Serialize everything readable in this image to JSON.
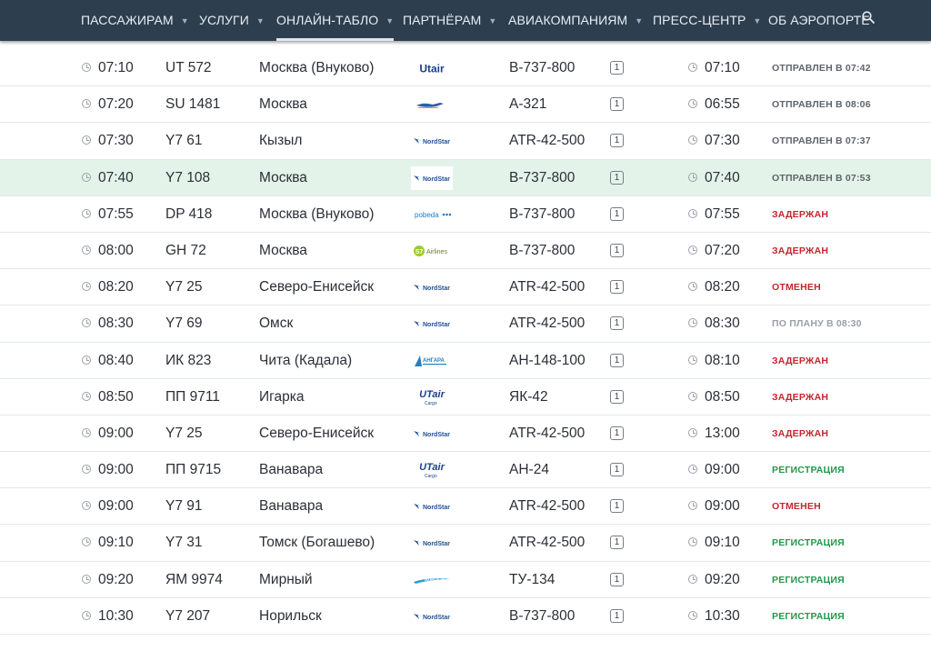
{
  "nav": {
    "items": [
      {
        "label": "ПАССАЖИРАМ",
        "dropdown": true
      },
      {
        "label": "УСЛУГИ",
        "dropdown": true
      },
      {
        "label": "ОНЛАЙН-ТАБЛО",
        "dropdown": true,
        "active": true
      },
      {
        "label": "ПАРТНЁРАМ",
        "dropdown": true
      },
      {
        "label": "АВИАКОМПАНИЯМ",
        "dropdown": true
      },
      {
        "label": "ПРЕСС-ЦЕНТР",
        "dropdown": true
      },
      {
        "label": "ОБ АЭРОПОРТЕ",
        "dropdown": false
      }
    ],
    "search_icon": "search-icon"
  },
  "colors": {
    "nav_bg": "#2d3e4f",
    "highlight_row": "#e4f3ea",
    "status_red": "#c4262e",
    "status_green": "#1f9a4a",
    "status_grey": "#5d646b"
  },
  "flights": [
    {
      "sched": "07:10",
      "flight": "UT 572",
      "city": "Москва (Внуково)",
      "airline": "utair",
      "aircraft": "B-737-800",
      "terminal": "1",
      "actual": "07:10",
      "status": "ОТПРАВЛЕН В 07:42",
      "status_kind": "grey"
    },
    {
      "sched": "07:20",
      "flight": "SU 1481",
      "city": "Москва",
      "airline": "aeroflot",
      "aircraft": "A-321",
      "terminal": "1",
      "actual": "06:55",
      "status": "ОТПРАВЛЕН В 08:06",
      "status_kind": "grey"
    },
    {
      "sched": "07:30",
      "flight": "Y7 61",
      "city": "Кызыл",
      "airline": "nordstar",
      "aircraft": "ATR-42-500",
      "terminal": "1",
      "actual": "07:30",
      "status": "ОТПРАВЛЕН В 07:37",
      "status_kind": "grey"
    },
    {
      "sched": "07:40",
      "flight": "Y7 108",
      "city": "Москва",
      "airline": "nordstar",
      "aircraft": "B-737-800",
      "terminal": "1",
      "actual": "07:40",
      "status": "ОТПРАВЛЕН В 07:53",
      "status_kind": "grey",
      "highlight": true
    },
    {
      "sched": "07:55",
      "flight": "DP 418",
      "city": "Москва (Внуково)",
      "airline": "pobeda",
      "aircraft": "B-737-800",
      "terminal": "1",
      "actual": "07:55",
      "status": "ЗАДЕРЖАН",
      "status_kind": "red"
    },
    {
      "sched": "08:00",
      "flight": "GH 72",
      "city": "Москва",
      "airline": "s7",
      "aircraft": "B-737-800",
      "terminal": "1",
      "actual": "07:20",
      "status": "ЗАДЕРЖАН",
      "status_kind": "red"
    },
    {
      "sched": "08:20",
      "flight": "Y7 25",
      "city": "Северо-Енисейск",
      "airline": "nordstar",
      "aircraft": "ATR-42-500",
      "terminal": "1",
      "actual": "08:20",
      "status": "ОТМЕНЕН",
      "status_kind": "red"
    },
    {
      "sched": "08:30",
      "flight": "Y7 69",
      "city": "Омск",
      "airline": "nordstar",
      "aircraft": "ATR-42-500",
      "terminal": "1",
      "actual": "08:30",
      "status": "ПО ПЛАНУ В 08:30",
      "status_kind": "light"
    },
    {
      "sched": "08:40",
      "flight": "ИК 823",
      "city": "Чита (Кадала)",
      "airline": "angara",
      "aircraft": "AH-148-100",
      "terminal": "1",
      "actual": "08:10",
      "status": "ЗАДЕРЖАН",
      "status_kind": "red"
    },
    {
      "sched": "08:50",
      "flight": "ПП 9711",
      "city": "Игарка",
      "airline": "utair_cargo",
      "aircraft": "ЯК-42",
      "terminal": "1",
      "actual": "08:50",
      "status": "ЗАДЕРЖАН",
      "status_kind": "red"
    },
    {
      "sched": "09:00",
      "flight": "Y7 25",
      "city": "Северо-Енисейск",
      "airline": "nordstar",
      "aircraft": "ATR-42-500",
      "terminal": "1",
      "actual": "13:00",
      "status": "ЗАДЕРЖАН",
      "status_kind": "red"
    },
    {
      "sched": "09:00",
      "flight": "ПП 9715",
      "city": "Ванавара",
      "airline": "utair_cargo",
      "aircraft": "AH-24",
      "terminal": "1",
      "actual": "09:00",
      "status": "РЕГИСТРАЦИЯ",
      "status_kind": "green"
    },
    {
      "sched": "09:00",
      "flight": "Y7 91",
      "city": "Ванавара",
      "airline": "nordstar",
      "aircraft": "ATR-42-500",
      "terminal": "1",
      "actual": "09:00",
      "status": "ОТМЕНЕН",
      "status_kind": "red"
    },
    {
      "sched": "09:10",
      "flight": "Y7 31",
      "city": "Томск (Богашево)",
      "airline": "nordstar",
      "aircraft": "ATR-42-500",
      "terminal": "1",
      "actual": "09:10",
      "status": "РЕГИСТРАЦИЯ",
      "status_kind": "green"
    },
    {
      "sched": "09:20",
      "flight": "ЯМ 9974",
      "city": "Мирный",
      "airline": "alrosa",
      "aircraft": "ТУ-134",
      "terminal": "1",
      "actual": "09:20",
      "status": "РЕГИСТРАЦИЯ",
      "status_kind": "green"
    },
    {
      "sched": "10:30",
      "flight": "Y7 207",
      "city": "Норильск",
      "airline": "nordstar",
      "aircraft": "B-737-800",
      "terminal": "1",
      "actual": "10:30",
      "status": "РЕГИСТРАЦИЯ",
      "status_kind": "green"
    },
    {
      "sched": "",
      "flight": "",
      "city": "",
      "airline": "",
      "aircraft": "",
      "terminal": "",
      "actual": "",
      "status": "",
      "status_kind": "grey",
      "partial": true
    }
  ]
}
